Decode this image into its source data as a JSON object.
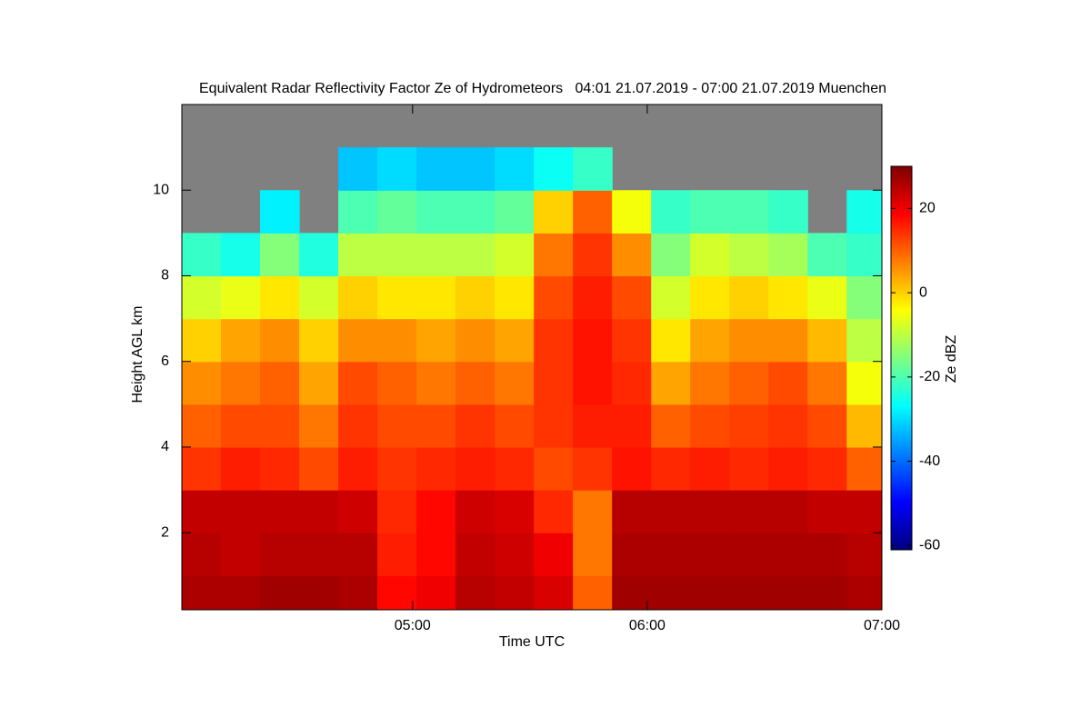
{
  "chart_data": {
    "type": "heatmap",
    "title": "Equivalent Radar Reflectivity Factor Ze of Hydrometeors   04:01 21.07.2019 - 07:00 21.07.2019 Muenchen",
    "x_label": "Time UTC",
    "y_label": "Height AGL km",
    "colorbar_label": "Ze dBZ",
    "x": [
      246,
      256,
      266,
      276,
      286,
      296,
      306,
      316,
      326,
      336,
      346,
      356,
      366,
      376,
      386,
      396,
      406,
      416
    ],
    "y": [
      0.5,
      1.5,
      2.5,
      3.5,
      4.5,
      5.5,
      6.5,
      7.5,
      8.5,
      9.5,
      10.5,
      11.5
    ],
    "values": [
      [
        26,
        26,
        27,
        27,
        26,
        18,
        20,
        25,
        24,
        22,
        10,
        27,
        27,
        27,
        27,
        27,
        27,
        26
      ],
      [
        25,
        24,
        25,
        25,
        25,
        16,
        18,
        24,
        23,
        20,
        8,
        26,
        26,
        26,
        26,
        26,
        26,
        25
      ],
      [
        24,
        24,
        24,
        24,
        23,
        15,
        18,
        23,
        22,
        15,
        8,
        25,
        25,
        25,
        25,
        25,
        24,
        24
      ],
      [
        14,
        16,
        15,
        12,
        16,
        14,
        15,
        16,
        15,
        12,
        14,
        17,
        15,
        16,
        15,
        16,
        15,
        10
      ],
      [
        10,
        12,
        12,
        8,
        14,
        12,
        12,
        14,
        12,
        14,
        16,
        16,
        10,
        12,
        13,
        14,
        12,
        2
      ],
      [
        6,
        8,
        10,
        4,
        12,
        10,
        8,
        10,
        8,
        14,
        17,
        15,
        4,
        8,
        10,
        12,
        8,
        -5
      ],
      [
        0,
        4,
        6,
        0,
        6,
        6,
        4,
        6,
        4,
        14,
        17,
        14,
        -2,
        4,
        6,
        6,
        2,
        -10
      ],
      [
        -8,
        -6,
        -2,
        -8,
        0,
        -2,
        -2,
        0,
        -2,
        12,
        16,
        12,
        -8,
        -2,
        0,
        -2,
        -6,
        -15
      ],
      [
        -22,
        -25,
        -15,
        -24,
        -10,
        -10,
        -10,
        -10,
        -8,
        8,
        14,
        6,
        -15,
        -8,
        -10,
        -12,
        -20,
        -22
      ],
      [
        null,
        null,
        -28,
        null,
        -20,
        -18,
        -20,
        -20,
        -18,
        0,
        10,
        -5,
        -22,
        -20,
        -20,
        -22,
        null,
        -25
      ],
      [
        null,
        null,
        null,
        null,
        -32,
        -30,
        -32,
        -32,
        -30,
        -26,
        -22,
        null,
        null,
        null,
        null,
        null,
        null,
        null
      ],
      [
        null,
        null,
        null,
        null,
        null,
        null,
        null,
        null,
        null,
        null,
        null,
        null,
        null,
        null,
        null,
        null,
        null,
        null
      ]
    ],
    "xlim": [
      241,
      420
    ],
    "xticks": [
      {
        "value": 300,
        "label": "05:00"
      },
      {
        "value": 360,
        "label": "06:00"
      },
      {
        "value": 420,
        "label": "07:00"
      }
    ],
    "ylim": [
      0.2,
      12
    ],
    "yticks": [
      2,
      4,
      6,
      8,
      10
    ],
    "clim": [
      -61,
      30
    ],
    "cticks": [
      -60,
      -40,
      -20,
      0,
      20
    ],
    "colormap": [
      "#00007f",
      "#0000ff",
      "#007fff",
      "#00ffff",
      "#7fff7f",
      "#ffff00",
      "#ff7f00",
      "#ff0000",
      "#7f0000"
    ],
    "missing_color": "#808080"
  }
}
